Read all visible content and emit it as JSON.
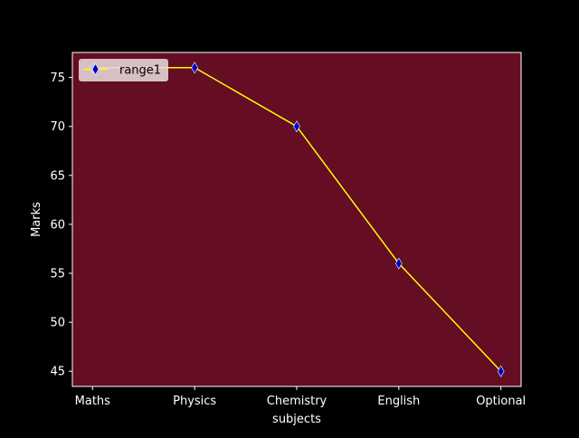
{
  "chart_data": {
    "type": "line",
    "title": "",
    "xlabel": "subjects",
    "ylabel": "Marks",
    "categories": [
      "Maths",
      "Physics",
      "Chemistry",
      "English",
      "Optional"
    ],
    "series": [
      {
        "name": "range1",
        "values": [
          76,
          76,
          70,
          56,
          45
        ]
      }
    ],
    "ylim": [
      43.45,
      77.55
    ],
    "yticks": [
      45,
      50,
      55,
      60,
      65,
      70,
      75
    ],
    "grid": false,
    "legend_position": "top-left",
    "colors": {
      "figure_background": "#000000",
      "plot_background": "#640d23",
      "axes_edge": "#ffffff",
      "text": "#ffffff",
      "line": "#ffff00",
      "marker_face": "#0000cd",
      "legend_background": "#e6d8dc",
      "legend_text": "#000000"
    },
    "marker": "thin-diamond"
  }
}
